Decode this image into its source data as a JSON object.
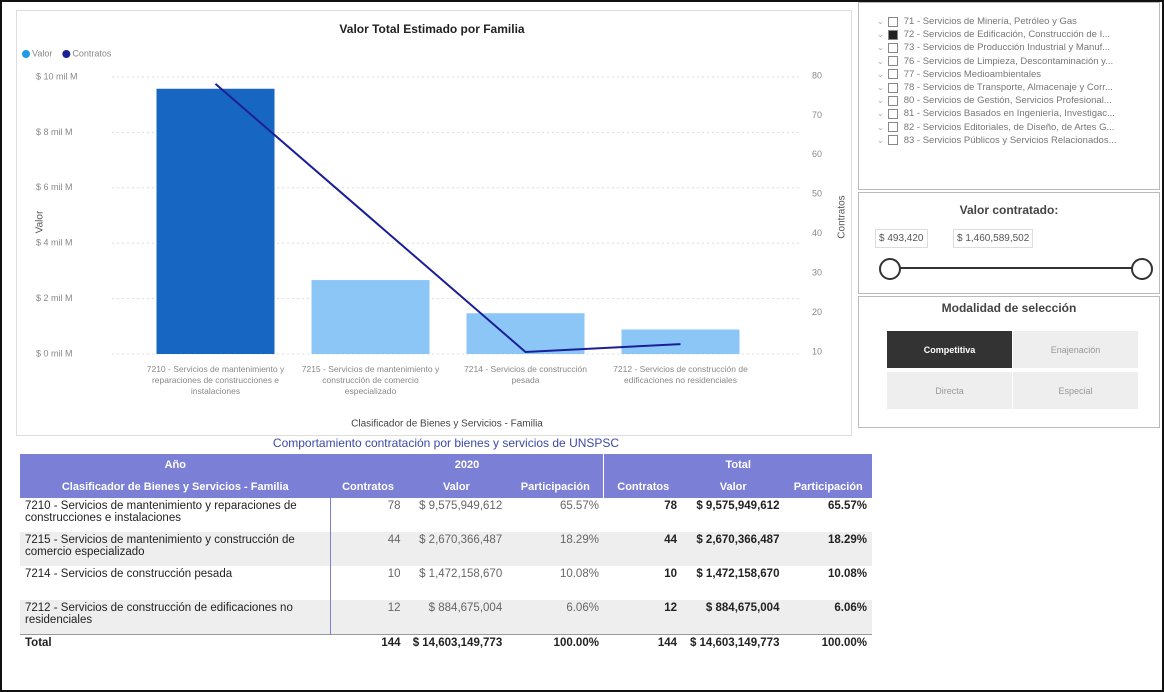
{
  "chart_data": {
    "type": "bar-line",
    "title": "Valor Total Estimado por Familia",
    "x_label": "Clasificador de Bienes y Servicios - Familia",
    "y_label": "Valor",
    "y2_label": "Contratos",
    "categories": [
      "7210 - Servicios de mantenimiento y reparaciones de construcciones e instalaciones",
      "7215 - Servicios de mantenimiento y construcción de comercio especializado",
      "7214 - Servicios de construcción pesada",
      "7212 - Servicios de construcción de edificaciones no residenciales"
    ],
    "series": [
      {
        "name": "Valor",
        "color": "#1e9be6",
        "bar_colors": [
          "#1767c2",
          "#8cc6f7",
          "#8cc6f7",
          "#8cc6f7"
        ],
        "values": [
          9.576,
          2.67,
          1.472,
          0.885
        ]
      },
      {
        "name": "Contratos",
        "color": "#1a1f96",
        "axis": "y2",
        "values": [
          78,
          44,
          10,
          12
        ]
      }
    ],
    "ylim": [
      0,
      10
    ],
    "yticks": [
      {
        "value": 0,
        "label": "$ 0 mil M"
      },
      {
        "value": 2,
        "label": "$ 2 mil M"
      },
      {
        "value": 4,
        "label": "$ 4 mil M"
      },
      {
        "value": 6,
        "label": "$ 6 mil M"
      },
      {
        "value": 8,
        "label": "$ 8 mil M"
      },
      {
        "value": 10,
        "label": "$ 10 mil M"
      }
    ],
    "y2lim": [
      10,
      80
    ],
    "y2ticks": [
      10,
      20,
      30,
      40,
      50,
      60,
      70,
      80
    ],
    "grid": true,
    "legend": "top-left"
  },
  "slicer": {
    "items": [
      {
        "label": "71 - Servicios de Minería, Petróleo y Gas",
        "checked": false
      },
      {
        "label": "72 - Servicios de Edificación, Construcción de I...",
        "checked": true
      },
      {
        "label": "73 - Servicios de Producción Industrial y Manuf...",
        "checked": false
      },
      {
        "label": "76 - Servicios de Limpieza, Descontaminación y...",
        "checked": false
      },
      {
        "label": "77 - Servicios Medioambientales",
        "checked": false
      },
      {
        "label": "78 - Servicios de Transporte, Almacenaje y Corr...",
        "checked": false
      },
      {
        "label": "80 - Servicios de Gestión, Servicios Profesional...",
        "checked": false
      },
      {
        "label": "81 - Servicios Basados en Ingeniería, Investigac...",
        "checked": false
      },
      {
        "label": "82 - Servicios Editoriales, de Diseño, de Artes G...",
        "checked": false
      },
      {
        "label": "83 - Servicios Públicos y Servicios Relacionados...",
        "checked": false
      }
    ]
  },
  "range_slicer": {
    "title": "Valor contratado:",
    "min": "$ 493,420",
    "max": "$ 1,460,589,502"
  },
  "modality": {
    "title": "Modalidad de selección",
    "options": [
      "Competitiva",
      "Enajenación",
      "Directa",
      "Especial"
    ],
    "selected": 0
  },
  "table": {
    "title": "Comportamiento contratación por bienes y servicios de UNSPSC",
    "header_top": [
      "Año",
      "2020",
      "Total"
    ],
    "columns": [
      "Clasificador de Bienes y Servicios - Familia",
      "Contratos",
      "Valor",
      "Participación",
      "Contratos",
      "Valor",
      "Participación"
    ],
    "rows": [
      [
        "7210 - Servicios de mantenimiento y reparaciones de construcciones e instalaciones",
        "78",
        "$ 9,575,949,612",
        "65.57%",
        "78",
        "$ 9,575,949,612",
        "65.57%"
      ],
      [
        "7215 - Servicios de mantenimiento y construcción de comercio especializado",
        "44",
        "$ 2,670,366,487",
        "18.29%",
        "44",
        "$ 2,670,366,487",
        "18.29%"
      ],
      [
        "7214 - Servicios de construcción pesada",
        "10",
        "$ 1,472,158,670",
        "10.08%",
        "10",
        "$ 1,472,158,670",
        "10.08%"
      ],
      [
        "7212 - Servicios de construcción de edificaciones no residenciales",
        "12",
        "$ 884,675,004",
        "6.06%",
        "12",
        "$ 884,675,004",
        "6.06%"
      ]
    ],
    "total": [
      "Total",
      "144",
      "$ 14,603,149,773",
      "100.00%",
      "144",
      "$ 14,603,149,773",
      "100.00%"
    ]
  }
}
